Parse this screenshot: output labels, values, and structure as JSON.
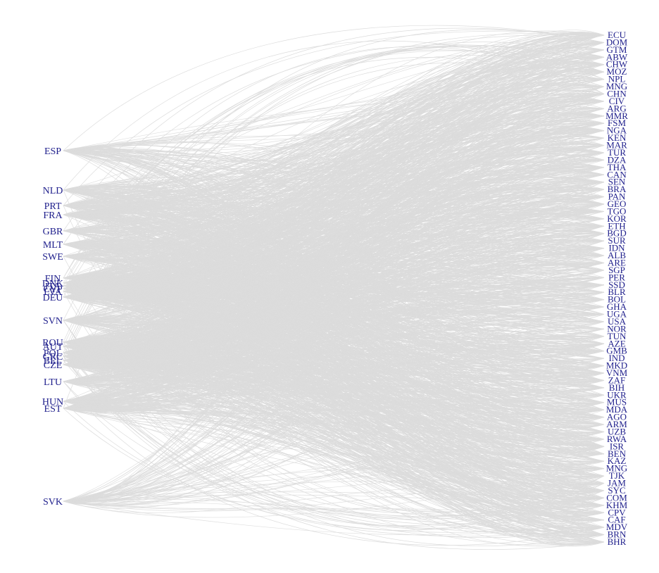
{
  "diagram": {
    "type": "bipartite-network",
    "edge_color": "#dcdcdc",
    "label_color": "#1f1f8c",
    "background": "#ffffff",
    "left_nodes": [
      {
        "label": "ESP"
      },
      {
        "label": "NLD"
      },
      {
        "label": "PRT"
      },
      {
        "label": "FRA"
      },
      {
        "label": "GBR"
      },
      {
        "label": "MLT"
      },
      {
        "label": "SWE"
      },
      {
        "label": "FIN"
      },
      {
        "label": "DNK"
      },
      {
        "label": "ITA"
      },
      {
        "label": "CYP"
      },
      {
        "label": "LVA"
      },
      {
        "label": "DEU"
      },
      {
        "label": "SVN"
      },
      {
        "label": "ROU"
      },
      {
        "label": "AUT"
      },
      {
        "label": "POL"
      },
      {
        "label": "GRC"
      },
      {
        "label": "BEL"
      },
      {
        "label": "CZE"
      },
      {
        "label": "LTU"
      },
      {
        "label": "HUN"
      },
      {
        "label": "EST"
      },
      {
        "label": "SVK"
      }
    ],
    "right_nodes": [
      {
        "label": "ECU"
      },
      {
        "label": "DOM"
      },
      {
        "label": "GTM"
      },
      {
        "label": "ABW"
      },
      {
        "label": "CHW"
      },
      {
        "label": "MOZ"
      },
      {
        "label": "NPL"
      },
      {
        "label": "MNG"
      },
      {
        "label": "CHN"
      },
      {
        "label": "CIV"
      },
      {
        "label": "ARG"
      },
      {
        "label": "MMR"
      },
      {
        "label": "FSM"
      },
      {
        "label": "NGA"
      },
      {
        "label": "KEN"
      },
      {
        "label": "MAR"
      },
      {
        "label": "TUR"
      },
      {
        "label": "DZA"
      },
      {
        "label": "THA"
      },
      {
        "label": "CAN"
      },
      {
        "label": "SEN"
      },
      {
        "label": "BRA"
      },
      {
        "label": "PAN"
      },
      {
        "label": "GEO"
      },
      {
        "label": "TGO"
      },
      {
        "label": "KOR"
      },
      {
        "label": "ETH"
      },
      {
        "label": "BGD"
      },
      {
        "label": "SUR"
      },
      {
        "label": "IDN"
      },
      {
        "label": "ALB"
      },
      {
        "label": "ARE"
      },
      {
        "label": "SGP"
      },
      {
        "label": "PER"
      },
      {
        "label": "SSD"
      },
      {
        "label": "BLR"
      },
      {
        "label": "BOL"
      },
      {
        "label": "GHA"
      },
      {
        "label": "UGA"
      },
      {
        "label": "USA"
      },
      {
        "label": "NOR"
      },
      {
        "label": "TUN"
      },
      {
        "label": "AZE"
      },
      {
        "label": "GMB"
      },
      {
        "label": "IND"
      },
      {
        "label": "MKD"
      },
      {
        "label": "VNM"
      },
      {
        "label": "ZAF"
      },
      {
        "label": "BIH"
      },
      {
        "label": "UKR"
      },
      {
        "label": "MUS"
      },
      {
        "label": "MDA"
      },
      {
        "label": "AGO"
      },
      {
        "label": "ARM"
      },
      {
        "label": "UZB"
      },
      {
        "label": "RWA"
      },
      {
        "label": "ISR"
      },
      {
        "label": "BEN"
      },
      {
        "label": "KAZ"
      },
      {
        "label": "MNG"
      },
      {
        "label": "TJK"
      },
      {
        "label": "JAM"
      },
      {
        "label": "SYC"
      },
      {
        "label": "COM"
      },
      {
        "label": "KHM"
      },
      {
        "label": "CPV"
      },
      {
        "label": "CAF"
      },
      {
        "label": "MDV"
      },
      {
        "label": "BRN"
      },
      {
        "label": "BHR"
      }
    ]
  }
}
